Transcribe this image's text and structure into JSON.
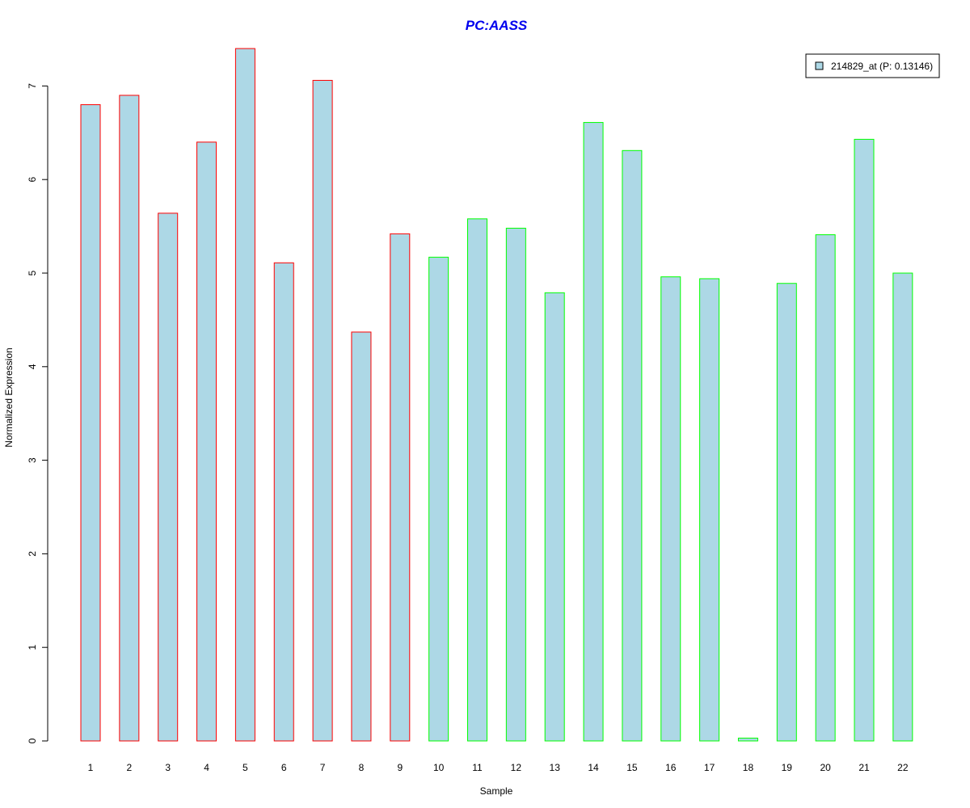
{
  "chart_data": {
    "type": "bar",
    "title": "PC:AASS",
    "title_color": "#0000ee",
    "xlabel": "Sample",
    "ylabel": "Normalized Expression",
    "categories": [
      "1",
      "2",
      "3",
      "4",
      "5",
      "6",
      "7",
      "8",
      "9",
      "10",
      "11",
      "12",
      "13",
      "14",
      "15",
      "16",
      "17",
      "18",
      "19",
      "20",
      "21",
      "22"
    ],
    "series": [
      {
        "name": "214829_at (P: 0.13146)",
        "values": [
          6.8,
          6.9,
          5.64,
          6.4,
          7.4,
          5.11,
          7.06,
          4.37,
          5.42,
          5.17,
          5.58,
          5.48,
          4.79,
          6.61,
          6.31,
          4.96,
          4.94,
          0.03,
          4.89,
          5.41,
          6.43,
          5.0
        ],
        "fill": "#add8e6",
        "groups": [
          "red",
          "red",
          "red",
          "red",
          "red",
          "red",
          "red",
          "red",
          "red",
          "green",
          "green",
          "green",
          "green",
          "green",
          "green",
          "green",
          "green",
          "green",
          "green",
          "green",
          "green",
          "green"
        ]
      }
    ],
    "group_colors": {
      "red": "#ff0000",
      "green": "#00ff00"
    },
    "yticks": [
      0,
      1,
      2,
      3,
      4,
      5,
      6,
      7
    ],
    "ylim": [
      0,
      7.4
    ],
    "grid": false,
    "legend_position": "top-right"
  }
}
